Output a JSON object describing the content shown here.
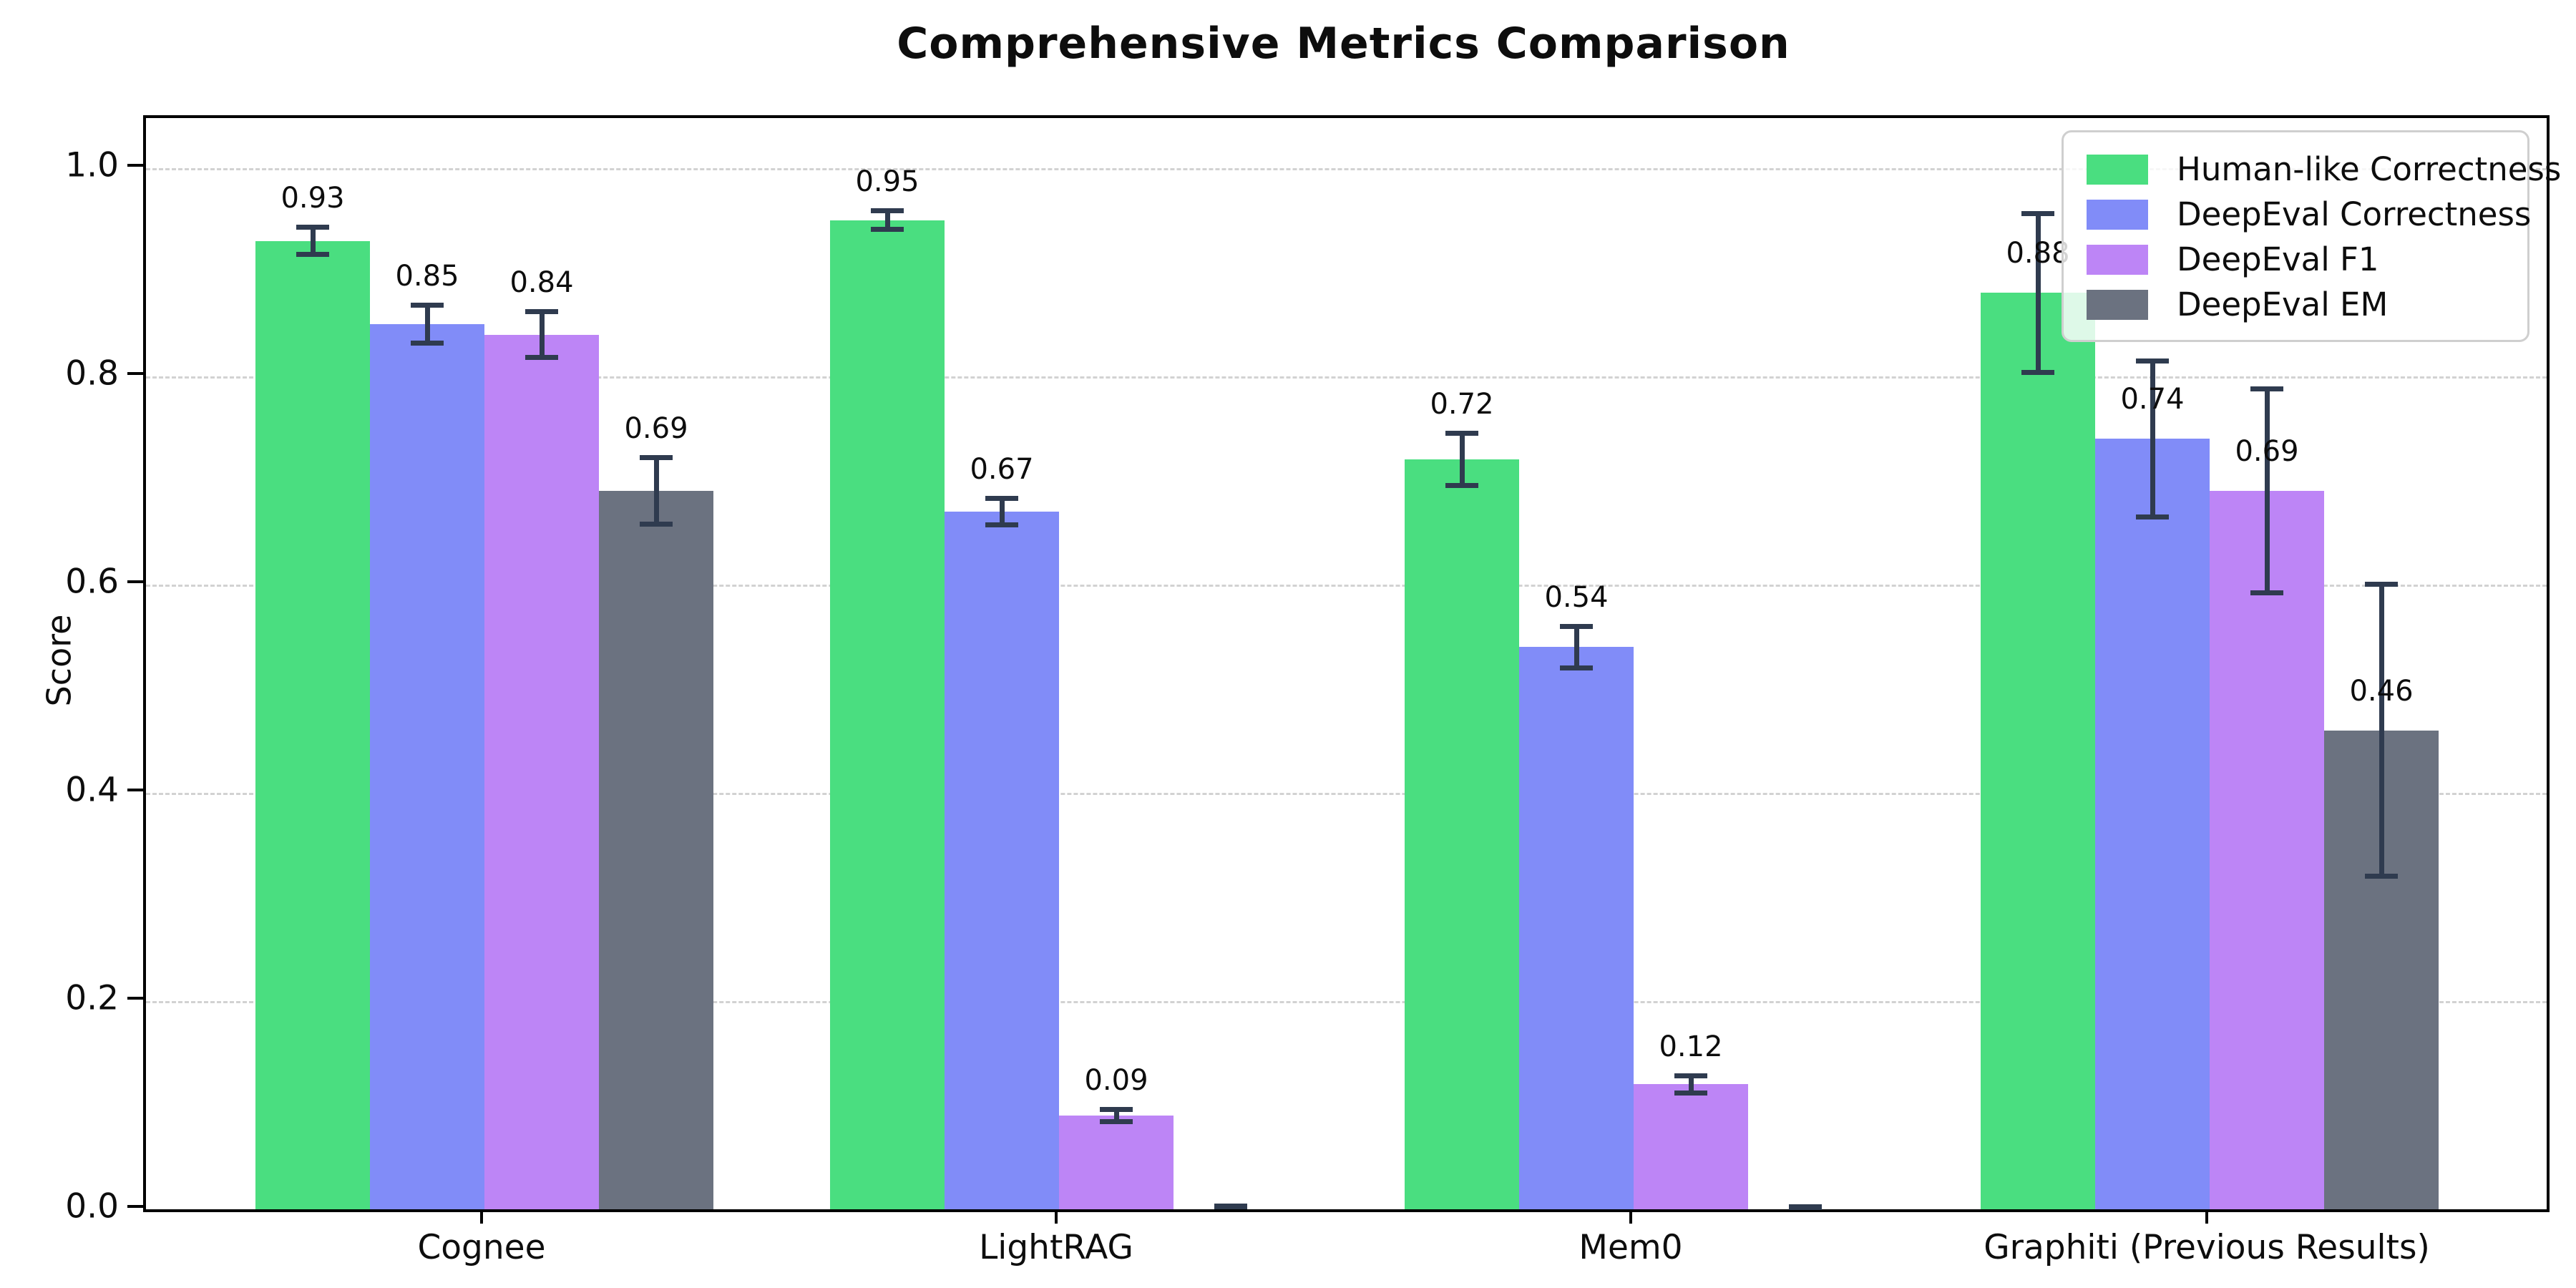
{
  "title": "Comprehensive Metrics Comparison",
  "chart_data": {
    "type": "bar",
    "title": "Comprehensive Metrics Comparison",
    "xlabel": "",
    "ylabel": "Score",
    "categories": [
      "Cognee",
      "LightRAG",
      "Mem0",
      "Graphiti (Previous Results)"
    ],
    "series": [
      {
        "name": "Human-like Correctness",
        "color": "#4ade80",
        "values": [
          0.93,
          0.95,
          0.72,
          0.88
        ],
        "errors": [
          0.013,
          0.009,
          0.025,
          0.076
        ],
        "labels": [
          "0.93",
          "0.95",
          "0.72",
          "0.88"
        ]
      },
      {
        "name": "DeepEval Correctness",
        "color": "#818cf8",
        "values": [
          0.85,
          0.67,
          0.54,
          0.74
        ],
        "errors": [
          0.018,
          0.013,
          0.02,
          0.075
        ],
        "labels": [
          "0.85",
          "0.67",
          "0.54",
          "0.74"
        ]
      },
      {
        "name": "DeepEval F1",
        "color": "#bd85f6",
        "values": [
          0.84,
          0.09,
          0.12,
          0.69
        ],
        "errors": [
          0.022,
          0.006,
          0.008,
          0.098
        ],
        "labels": [
          "0.84",
          "0.09",
          "0.12",
          "0.69"
        ]
      },
      {
        "name": "DeepEval EM",
        "color": "#6b7280",
        "values": [
          0.69,
          0.0,
          0.0,
          0.46
        ],
        "errors": [
          0.032,
          0.003,
          0.002,
          0.14
        ],
        "labels": [
          "0.69",
          "",
          "",
          "0.46"
        ]
      }
    ],
    "yticks": [
      "0.0",
      "0.2",
      "0.4",
      "0.6",
      "0.8",
      "1.0"
    ],
    "ylim": [
      0,
      1.048
    ],
    "grid": "horizontal dashed",
    "legend_position": "upper right",
    "error_bar_color": "#2f3b4f",
    "axis_color": "#000000",
    "gridline_color": "#d2d2d2"
  }
}
